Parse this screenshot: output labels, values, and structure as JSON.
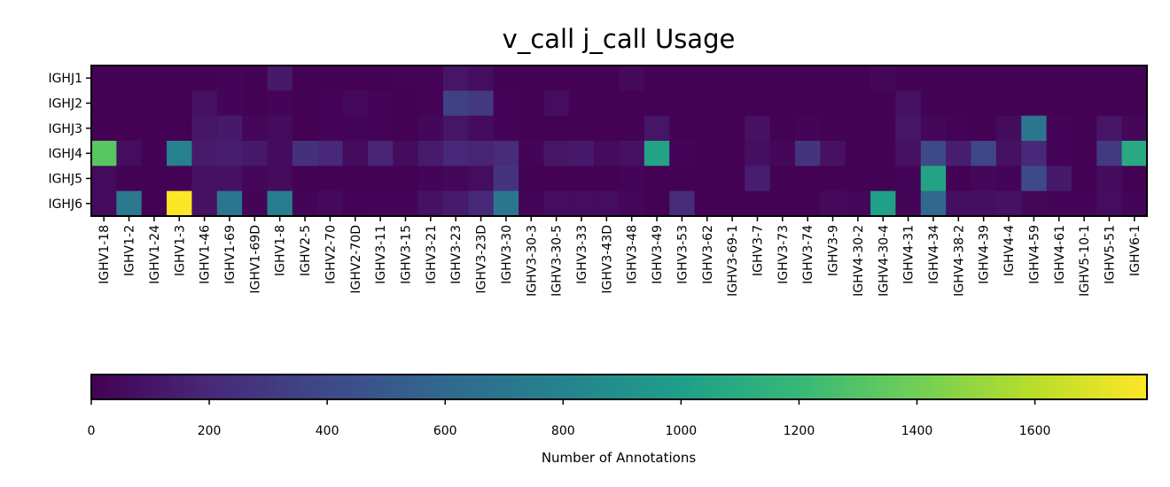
{
  "chart_data": {
    "type": "heatmap",
    "title": "v_call j_call Usage",
    "colorbar_label": "Number of Annotations",
    "colorbar_range": [
      0,
      1790
    ],
    "colorbar_ticks": [
      "0",
      "200",
      "400",
      "600",
      "800",
      "1000",
      "1200",
      "1400",
      "1600"
    ],
    "colormap": "viridis",
    "rows": [
      "IGHJ1",
      "IGHJ2",
      "IGHJ3",
      "IGHJ4",
      "IGHJ5",
      "IGHJ6"
    ],
    "columns": [
      "IGHV1-18",
      "IGHV1-2",
      "IGHV1-24",
      "IGHV1-3",
      "IGHV1-46",
      "IGHV1-69",
      "IGHV1-69D",
      "IGHV1-8",
      "IGHV2-5",
      "IGHV2-70",
      "IGHV2-70D",
      "IGHV3-11",
      "IGHV3-15",
      "IGHV3-21",
      "IGHV3-23",
      "IGHV3-23D",
      "IGHV3-30",
      "IGHV3-30-3",
      "IGHV3-30-5",
      "IGHV3-33",
      "IGHV3-43D",
      "IGHV3-48",
      "IGHV3-49",
      "IGHV3-53",
      "IGHV3-62",
      "IGHV3-69-1",
      "IGHV3-7",
      "IGHV3-73",
      "IGHV3-74",
      "IGHV3-9",
      "IGHV4-30-2",
      "IGHV4-30-4",
      "IGHV4-31",
      "IGHV4-34",
      "IGHV4-38-2",
      "IGHV4-39",
      "IGHV4-4",
      "IGHV4-59",
      "IGHV4-61",
      "IGHV5-10-1",
      "IGHV5-51",
      "IGHV6-1"
    ],
    "values": [
      [
        5,
        5,
        5,
        5,
        5,
        20,
        5,
        120,
        5,
        5,
        5,
        5,
        10,
        10,
        100,
        60,
        5,
        5,
        5,
        5,
        5,
        40,
        5,
        5,
        5,
        5,
        5,
        5,
        5,
        5,
        5,
        30,
        5,
        5,
        5,
        5,
        5,
        5,
        5,
        5,
        5,
        5
      ],
      [
        5,
        5,
        5,
        5,
        80,
        20,
        5,
        20,
        5,
        10,
        40,
        20,
        5,
        10,
        350,
        300,
        10,
        5,
        60,
        5,
        5,
        5,
        5,
        5,
        5,
        5,
        5,
        5,
        5,
        5,
        5,
        5,
        80,
        5,
        5,
        5,
        5,
        5,
        5,
        5,
        5,
        5
      ],
      [
        5,
        5,
        5,
        5,
        100,
        120,
        30,
        50,
        5,
        10,
        20,
        10,
        5,
        30,
        100,
        50,
        20,
        5,
        5,
        5,
        5,
        5,
        100,
        5,
        5,
        5,
        80,
        5,
        20,
        5,
        5,
        5,
        110,
        30,
        10,
        5,
        50,
        700,
        20,
        5,
        100,
        30
      ],
      [
        1320,
        60,
        5,
        780,
        130,
        150,
        120,
        50,
        250,
        200,
        50,
        180,
        50,
        130,
        200,
        180,
        220,
        20,
        100,
        120,
        50,
        80,
        1030,
        20,
        5,
        5,
        70,
        30,
        270,
        80,
        5,
        5,
        80,
        400,
        150,
        380,
        80,
        200,
        20,
        5,
        300,
        1080
      ],
      [
        50,
        5,
        5,
        5,
        80,
        80,
        30,
        50,
        5,
        5,
        5,
        5,
        5,
        20,
        30,
        60,
        270,
        5,
        5,
        5,
        5,
        20,
        5,
        5,
        5,
        5,
        150,
        5,
        5,
        5,
        5,
        5,
        20,
        1030,
        5,
        30,
        20,
        400,
        120,
        5,
        50,
        5
      ],
      [
        50,
        730,
        5,
        1790,
        80,
        700,
        20,
        760,
        20,
        40,
        10,
        20,
        20,
        80,
        130,
        200,
        700,
        20,
        60,
        60,
        60,
        30,
        5,
        220,
        5,
        5,
        5,
        5,
        5,
        40,
        30,
        1010,
        20,
        600,
        70,
        70,
        80,
        30,
        20,
        20,
        60,
        20
      ]
    ]
  }
}
